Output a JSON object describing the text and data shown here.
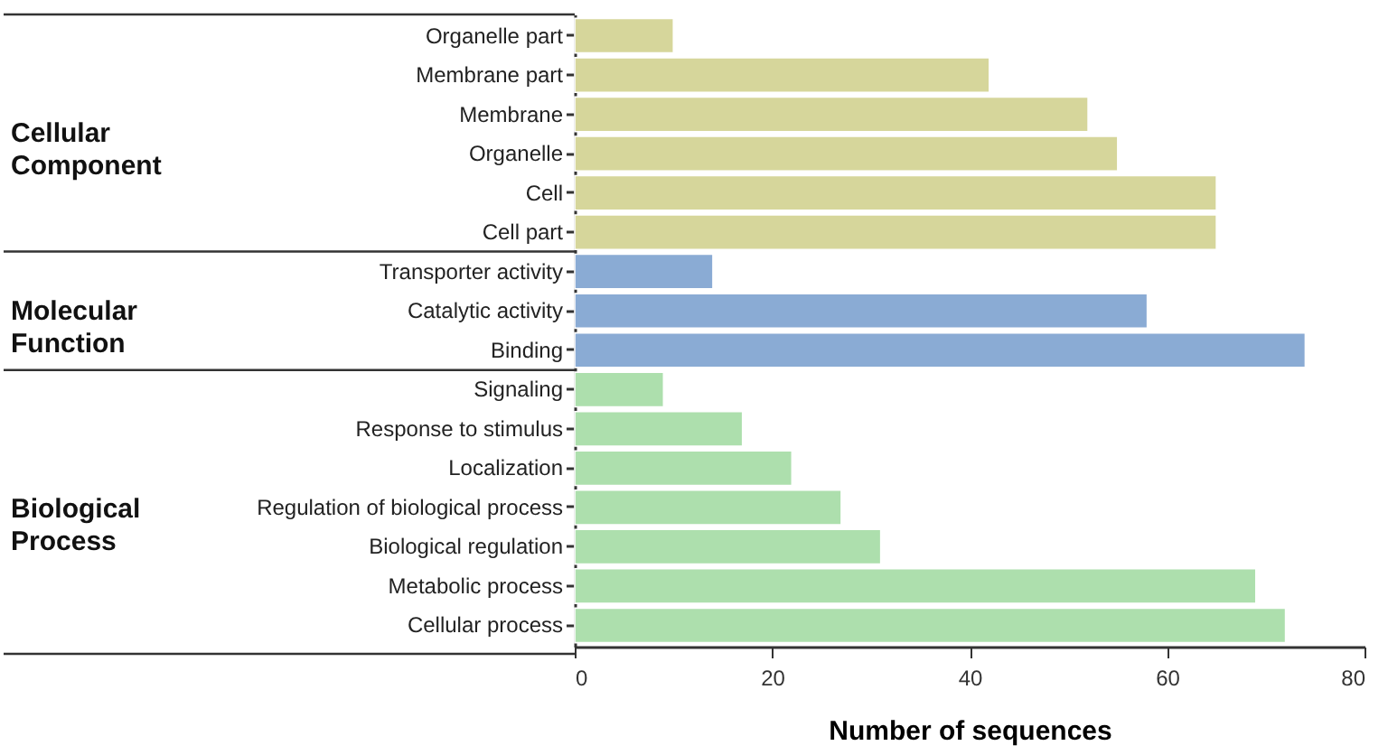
{
  "chart_data": {
    "type": "bar",
    "orientation": "horizontal",
    "xlabel": "Number of sequences",
    "categories": [
      "Organelle part",
      "Membrane part",
      "Membrane",
      "Organelle",
      "Cell",
      "Cell part",
      "Transporter activity",
      "Catalytic activity",
      "Binding",
      "Signaling",
      "Response to stimulus",
      "Localization",
      "Regulation of biological process",
      "Biological regulation",
      "Metabolic process",
      "Cellular process"
    ],
    "values": [
      10,
      42,
      52,
      55,
      65,
      65,
      14,
      58,
      74,
      9,
      17,
      22,
      27,
      31,
      69,
      72
    ],
    "colors": [
      "#d6d69b",
      "#d6d69b",
      "#d6d69b",
      "#d6d69b",
      "#d6d69b",
      "#d6d69b",
      "#8aabd4",
      "#8aabd4",
      "#8aabd4",
      "#addfad",
      "#addfad",
      "#addfad",
      "#addfad",
      "#addfad",
      "#addfad",
      "#addfad"
    ],
    "annotations": [
      "Cellular Component",
      "Molecular Function",
      "Biological Process"
    ],
    "xlim": [
      0,
      80
    ],
    "xticks": [
      0,
      20,
      40,
      60,
      80
    ],
    "grid": false
  }
}
